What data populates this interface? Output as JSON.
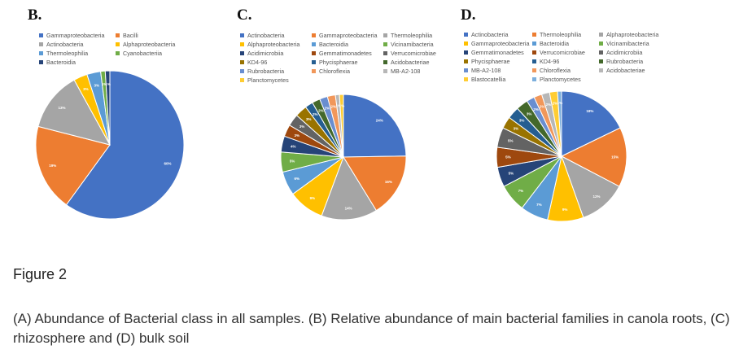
{
  "figure_title": "Figure 2",
  "caption": "(A) Abundance of Bacterial class in all samples. (B) Relative abundance of main bacterial families in canola roots, (C) rhizosphere and (D) bulk soil",
  "chart_data": [
    {
      "type": "pie",
      "panel": "B.",
      "labels": [
        "Gammaproteobacteria",
        "Bacilli",
        "Actinobacteria",
        "Alphaproteobacteria",
        "Thermoleophilia",
        "Cyanobacteriia",
        "Bacteroidia"
      ],
      "values": [
        60,
        19,
        13,
        3,
        3,
        1,
        1
      ],
      "colors": [
        "#4472C4",
        "#ED7D31",
        "#A5A5A5",
        "#FFC000",
        "#5B9BD5",
        "#70AD47",
        "#264478"
      ],
      "legend": "top"
    },
    {
      "type": "pie",
      "panel": "C.",
      "labels": [
        "Actinobacteria",
        "Gammaproteobacteria",
        "Thermoleophilia",
        "Alphaproteobacteria",
        "Bacteroidia",
        "Vicinamibacteria",
        "Acidimicrobiia",
        "Gemmatimonadetes",
        "Verrucomicrobiae",
        "KD4-96",
        "Phycisphaerae",
        "Acidobacteriae",
        "Rubrobacteria",
        "Chloroflexia",
        "MB-A2-108",
        "Planctomycetes"
      ],
      "values": [
        24,
        16,
        14,
        9,
        6,
        5,
        4,
        3,
        3,
        3,
        2,
        2,
        2,
        2,
        1,
        1
      ],
      "colors": [
        "#4472C4",
        "#ED7D31",
        "#A5A5A5",
        "#FFC000",
        "#5B9BD5",
        "#70AD47",
        "#264478",
        "#9E480E",
        "#636363",
        "#997300",
        "#255E91",
        "#43682B",
        "#698ED0",
        "#F1975A",
        "#B7B7B7",
        "#FFCD33"
      ],
      "legend": "top"
    },
    {
      "type": "pie",
      "panel": "D.",
      "labels": [
        "Actinobacteria",
        "Thermoleophilia",
        "Alphaproteobacteria",
        "Gammaproteobacteria",
        "Bacteroidia",
        "Vicinamibacteria",
        "Gemmatimonadetes",
        "Verrucomicrobiae",
        "Acidimicrobiia",
        "Phycisphaerae",
        "KD4-96",
        "Rubrobacteria",
        "MB-A2-108",
        "Chloroflexia",
        "Acidobacteriae",
        "Blastocatellia",
        "Planctomycetes"
      ],
      "values": [
        18,
        15,
        12,
        9,
        7,
        7,
        5,
        5,
        5,
        3,
        3,
        3,
        2,
        2,
        2,
        2,
        1
      ],
      "colors": [
        "#4472C4",
        "#ED7D31",
        "#A5A5A5",
        "#FFC000",
        "#5B9BD5",
        "#70AD47",
        "#264478",
        "#9E480E",
        "#636363",
        "#997300",
        "#255E91",
        "#43682B",
        "#698ED0",
        "#F1975A",
        "#B7B7B7",
        "#FFCD33",
        "#7CAFDD"
      ],
      "legend": "top"
    }
  ]
}
